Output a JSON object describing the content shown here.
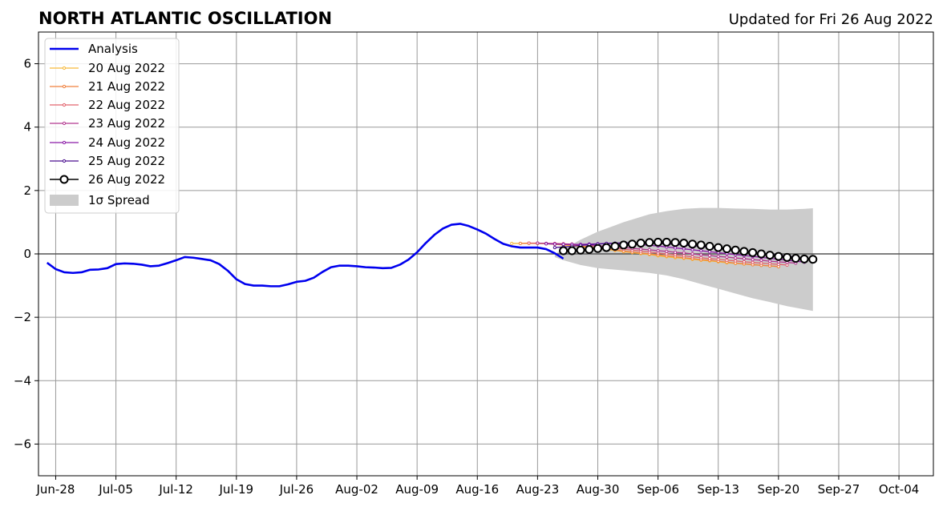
{
  "title": "NORTH ATLANTIC OSCILLATION",
  "updated": "Updated for Fri 26 Aug 2022",
  "colors": {
    "analysis": "#0000ee",
    "spread": "#cccccc",
    "grid": "#999999",
    "zero_line": "#555555"
  },
  "chart_data": {
    "type": "line",
    "title": "NORTH ATLANTIC OSCILLATION",
    "xlabel": "",
    "ylabel": "",
    "x_unit": "date",
    "xlim": [
      "2022-06-26",
      "2022-10-08"
    ],
    "ylim": [
      -7,
      7
    ],
    "grid": true,
    "legend_position": "top-left",
    "y_ticks": [
      -6,
      -4,
      -2,
      0,
      2,
      4,
      6
    ],
    "y_tick_labels": [
      "−6",
      "−4",
      "−2",
      "0",
      "2",
      "4",
      "6"
    ],
    "x_ticks": [
      "2022-06-28",
      "2022-07-05",
      "2022-07-12",
      "2022-07-19",
      "2022-07-26",
      "2022-08-02",
      "2022-08-09",
      "2022-08-16",
      "2022-08-23",
      "2022-08-30",
      "2022-09-06",
      "2022-09-13",
      "2022-09-20",
      "2022-09-27",
      "2022-10-04"
    ],
    "x_tick_labels": [
      "Jun-28",
      "Jul-05",
      "Jul-12",
      "Jul-19",
      "Jul-26",
      "Aug-02",
      "Aug-09",
      "Aug-16",
      "Aug-23",
      "Aug-30",
      "Sep-06",
      "Sep-13",
      "Sep-20",
      "Sep-27",
      "Oct-04"
    ],
    "analysis": {
      "name": "Analysis",
      "color": "#0000ee",
      "x": [
        "2022-06-27",
        "2022-06-28",
        "2022-06-29",
        "2022-06-30",
        "2022-07-01",
        "2022-07-02",
        "2022-07-03",
        "2022-07-04",
        "2022-07-05",
        "2022-07-06",
        "2022-07-07",
        "2022-07-08",
        "2022-07-09",
        "2022-07-10",
        "2022-07-11",
        "2022-07-12",
        "2022-07-13",
        "2022-07-14",
        "2022-07-15",
        "2022-07-16",
        "2022-07-17",
        "2022-07-18",
        "2022-07-19",
        "2022-07-20",
        "2022-07-21",
        "2022-07-22",
        "2022-07-23",
        "2022-07-24",
        "2022-07-25",
        "2022-07-26",
        "2022-07-27",
        "2022-07-28",
        "2022-07-29",
        "2022-07-30",
        "2022-07-31",
        "2022-08-01",
        "2022-08-02",
        "2022-08-03",
        "2022-08-04",
        "2022-08-05",
        "2022-08-06",
        "2022-08-07",
        "2022-08-08",
        "2022-08-09",
        "2022-08-10",
        "2022-08-11",
        "2022-08-12",
        "2022-08-13",
        "2022-08-14",
        "2022-08-15",
        "2022-08-16",
        "2022-08-17",
        "2022-08-18",
        "2022-08-19",
        "2022-08-20",
        "2022-08-21",
        "2022-08-22",
        "2022-08-23",
        "2022-08-24",
        "2022-08-25",
        "2022-08-26"
      ],
      "y": [
        -0.28,
        -0.48,
        -0.58,
        -0.6,
        -0.58,
        -0.5,
        -0.49,
        -0.45,
        -0.32,
        -0.3,
        -0.31,
        -0.34,
        -0.39,
        -0.37,
        -0.29,
        -0.2,
        -0.1,
        -0.12,
        -0.16,
        -0.2,
        -0.32,
        -0.53,
        -0.8,
        -0.95,
        -1.0,
        -1.0,
        -1.02,
        -1.02,
        -0.96,
        -0.88,
        -0.85,
        -0.75,
        -0.57,
        -0.42,
        -0.37,
        -0.37,
        -0.39,
        -0.42,
        -0.43,
        -0.45,
        -0.44,
        -0.34,
        -0.18,
        0.05,
        0.34,
        0.6,
        0.8,
        0.92,
        0.95,
        0.88,
        0.77,
        0.64,
        0.47,
        0.32,
        0.24,
        0.2,
        0.2,
        0.2,
        0.15,
        0.02,
        -0.15
      ]
    },
    "spread": {
      "name": "1σ Spread",
      "color": "#cccccc",
      "x": [
        "2022-08-25",
        "2022-08-26",
        "2022-08-28",
        "2022-08-30",
        "2022-09-02",
        "2022-09-05",
        "2022-09-07",
        "2022-09-09",
        "2022-09-11",
        "2022-09-13",
        "2022-09-15",
        "2022-09-17",
        "2022-09-19",
        "2022-09-21",
        "2022-09-23",
        "2022-09-24"
      ],
      "upper": [
        0.0,
        0.15,
        0.45,
        0.7,
        1.0,
        1.25,
        1.35,
        1.42,
        1.45,
        1.45,
        1.43,
        1.42,
        1.4,
        1.4,
        1.42,
        1.44
      ],
      "lower": [
        -0.1,
        -0.2,
        -0.35,
        -0.45,
        -0.52,
        -0.6,
        -0.68,
        -0.8,
        -0.95,
        -1.1,
        -1.25,
        -1.4,
        -1.52,
        -1.65,
        -1.75,
        -1.8
      ]
    },
    "series": [
      {
        "name": "20 Aug 2022",
        "color": "#f6b93b",
        "x": [
          "2022-08-20",
          "2022-08-21",
          "2022-08-22",
          "2022-08-23",
          "2022-08-24",
          "2022-08-25",
          "2022-08-26",
          "2022-08-27",
          "2022-08-28",
          "2022-08-29",
          "2022-08-30",
          "2022-08-31",
          "2022-09-01",
          "2022-09-02",
          "2022-09-03",
          "2022-09-04",
          "2022-09-05",
          "2022-09-06",
          "2022-09-07",
          "2022-09-08",
          "2022-09-09",
          "2022-09-10",
          "2022-09-11",
          "2022-09-12",
          "2022-09-13",
          "2022-09-14",
          "2022-09-15",
          "2022-09-16",
          "2022-09-17",
          "2022-09-18",
          "2022-09-19",
          "2022-09-20"
        ],
        "y": [
          0.33,
          0.33,
          0.33,
          0.33,
          0.32,
          0.3,
          0.28,
          0.26,
          0.23,
          0.2,
          0.17,
          0.14,
          0.11,
          0.07,
          0.04,
          0.01,
          -0.02,
          -0.06,
          -0.09,
          -0.12,
          -0.14,
          -0.17,
          -0.2,
          -0.22,
          -0.25,
          -0.28,
          -0.3,
          -0.32,
          -0.34,
          -0.36,
          -0.38,
          -0.4
        ]
      },
      {
        "name": "21 Aug 2022",
        "color": "#f0813f",
        "x": [
          "2022-08-21",
          "2022-08-22",
          "2022-08-23",
          "2022-08-24",
          "2022-08-25",
          "2022-08-26",
          "2022-08-27",
          "2022-08-28",
          "2022-08-29",
          "2022-08-30",
          "2022-08-31",
          "2022-09-01",
          "2022-09-02",
          "2022-09-03",
          "2022-09-04",
          "2022-09-05",
          "2022-09-06",
          "2022-09-07",
          "2022-09-08",
          "2022-09-09",
          "2022-09-10",
          "2022-09-11",
          "2022-09-12",
          "2022-09-13",
          "2022-09-14",
          "2022-09-15",
          "2022-09-16",
          "2022-09-17",
          "2022-09-18",
          "2022-09-19",
          "2022-09-20"
        ],
        "y": [
          0.33,
          0.34,
          0.33,
          0.33,
          0.32,
          0.3,
          0.28,
          0.25,
          0.22,
          0.19,
          0.16,
          0.13,
          0.09,
          0.06,
          0.03,
          0.0,
          -0.03,
          -0.06,
          -0.09,
          -0.12,
          -0.15,
          -0.18,
          -0.2,
          -0.23,
          -0.26,
          -0.29,
          -0.31,
          -0.34,
          -0.36,
          -0.38,
          -0.4
        ]
      },
      {
        "name": "22 Aug 2022",
        "color": "#e2636d",
        "x": [
          "2022-08-22",
          "2022-08-23",
          "2022-08-24",
          "2022-08-25",
          "2022-08-26",
          "2022-08-27",
          "2022-08-28",
          "2022-08-29",
          "2022-08-30",
          "2022-08-31",
          "2022-09-01",
          "2022-09-02",
          "2022-09-03",
          "2022-09-04",
          "2022-09-05",
          "2022-09-06",
          "2022-09-07",
          "2022-09-08",
          "2022-09-09",
          "2022-09-10",
          "2022-09-11",
          "2022-09-12",
          "2022-09-13",
          "2022-09-14",
          "2022-09-15",
          "2022-09-16",
          "2022-09-17",
          "2022-09-18",
          "2022-09-19",
          "2022-09-20",
          "2022-09-21"
        ],
        "y": [
          0.34,
          0.34,
          0.33,
          0.33,
          0.32,
          0.31,
          0.29,
          0.27,
          0.24,
          0.21,
          0.18,
          0.15,
          0.12,
          0.09,
          0.06,
          0.03,
          0.0,
          -0.03,
          -0.06,
          -0.09,
          -0.12,
          -0.15,
          -0.17,
          -0.2,
          -0.22,
          -0.25,
          -0.27,
          -0.29,
          -0.31,
          -0.33,
          -0.35
        ]
      },
      {
        "name": "23 Aug 2022",
        "color": "#b2378f",
        "x": [
          "2022-08-23",
          "2022-08-24",
          "2022-08-25",
          "2022-08-26",
          "2022-08-27",
          "2022-08-28",
          "2022-08-29",
          "2022-08-30",
          "2022-08-31",
          "2022-09-01",
          "2022-09-02",
          "2022-09-03",
          "2022-09-04",
          "2022-09-05",
          "2022-09-06",
          "2022-09-07",
          "2022-09-08",
          "2022-09-09",
          "2022-09-10",
          "2022-09-11",
          "2022-09-12",
          "2022-09-13",
          "2022-09-14",
          "2022-09-15",
          "2022-09-16",
          "2022-09-17",
          "2022-09-18",
          "2022-09-19",
          "2022-09-20",
          "2022-09-21",
          "2022-09-22"
        ],
        "y": [
          0.34,
          0.33,
          0.32,
          0.31,
          0.3,
          0.29,
          0.28,
          0.26,
          0.24,
          0.22,
          0.2,
          0.18,
          0.15,
          0.13,
          0.1,
          0.08,
          0.05,
          0.03,
          0.0,
          -0.03,
          -0.05,
          -0.08,
          -0.1,
          -0.13,
          -0.15,
          -0.18,
          -0.2,
          -0.23,
          -0.25,
          -0.27,
          -0.29
        ]
      },
      {
        "name": "24 Aug 2022",
        "color": "#8a1aa8",
        "x": [
          "2022-08-24",
          "2022-08-25",
          "2022-08-26",
          "2022-08-27",
          "2022-08-28",
          "2022-08-29",
          "2022-08-30",
          "2022-08-31",
          "2022-09-01",
          "2022-09-02",
          "2022-09-03",
          "2022-09-04",
          "2022-09-05",
          "2022-09-06",
          "2022-09-07",
          "2022-09-08",
          "2022-09-09",
          "2022-09-10",
          "2022-09-11",
          "2022-09-12",
          "2022-09-13",
          "2022-09-14",
          "2022-09-15",
          "2022-09-16",
          "2022-09-17",
          "2022-09-18",
          "2022-09-19",
          "2022-09-20",
          "2022-09-21",
          "2022-09-22",
          "2022-09-23"
        ],
        "y": [
          0.32,
          0.31,
          0.3,
          0.3,
          0.3,
          0.31,
          0.32,
          0.33,
          0.33,
          0.32,
          0.31,
          0.29,
          0.27,
          0.25,
          0.22,
          0.19,
          0.16,
          0.13,
          0.1,
          0.07,
          0.04,
          0.01,
          -0.02,
          -0.05,
          -0.08,
          -0.11,
          -0.14,
          -0.17,
          -0.2,
          -0.23,
          -0.26
        ]
      },
      {
        "name": "25 Aug 2022",
        "color": "#4a0f8f",
        "x": [
          "2022-08-25",
          "2022-08-26",
          "2022-08-27",
          "2022-08-28",
          "2022-08-29",
          "2022-08-30",
          "2022-08-31",
          "2022-09-01",
          "2022-09-02",
          "2022-09-03",
          "2022-09-04",
          "2022-09-05",
          "2022-09-06",
          "2022-09-07",
          "2022-09-08",
          "2022-09-09",
          "2022-09-10",
          "2022-09-11",
          "2022-09-12",
          "2022-09-13",
          "2022-09-14",
          "2022-09-15",
          "2022-09-16",
          "2022-09-17",
          "2022-09-18",
          "2022-09-19",
          "2022-09-20",
          "2022-09-21",
          "2022-09-22",
          "2022-09-23",
          "2022-09-24"
        ],
        "y": [
          0.2,
          0.22,
          0.24,
          0.27,
          0.29,
          0.31,
          0.33,
          0.34,
          0.35,
          0.35,
          0.35,
          0.34,
          0.33,
          0.32,
          0.3,
          0.28,
          0.26,
          0.23,
          0.2,
          0.17,
          0.14,
          0.11,
          0.08,
          0.05,
          0.02,
          -0.01,
          -0.04,
          -0.07,
          -0.1,
          -0.13,
          -0.16
        ]
      },
      {
        "name": "26 Aug 2022",
        "color": "#000000",
        "marker": "open-circle",
        "x": [
          "2022-08-26",
          "2022-08-27",
          "2022-08-28",
          "2022-08-29",
          "2022-08-30",
          "2022-08-31",
          "2022-09-01",
          "2022-09-02",
          "2022-09-03",
          "2022-09-04",
          "2022-09-05",
          "2022-09-06",
          "2022-09-07",
          "2022-09-08",
          "2022-09-09",
          "2022-09-10",
          "2022-09-11",
          "2022-09-12",
          "2022-09-13",
          "2022-09-14",
          "2022-09-15",
          "2022-09-16",
          "2022-09-17",
          "2022-09-18",
          "2022-09-19",
          "2022-09-20",
          "2022-09-21",
          "2022-09-22",
          "2022-09-23",
          "2022-09-24"
        ],
        "y": [
          0.1,
          0.1,
          0.12,
          0.14,
          0.17,
          0.2,
          0.24,
          0.28,
          0.31,
          0.34,
          0.36,
          0.37,
          0.37,
          0.36,
          0.34,
          0.31,
          0.28,
          0.24,
          0.2,
          0.16,
          0.12,
          0.08,
          0.04,
          0.0,
          -0.04,
          -0.08,
          -0.11,
          -0.14,
          -0.16,
          -0.17
        ]
      }
    ],
    "legend": {
      "position": "top-left",
      "entries": [
        "Analysis",
        "20 Aug 2022",
        "21 Aug 2022",
        "22 Aug 2022",
        "23 Aug 2022",
        "24 Aug 2022",
        "25 Aug 2022",
        "26 Aug 2022",
        "1σ Spread"
      ]
    }
  }
}
